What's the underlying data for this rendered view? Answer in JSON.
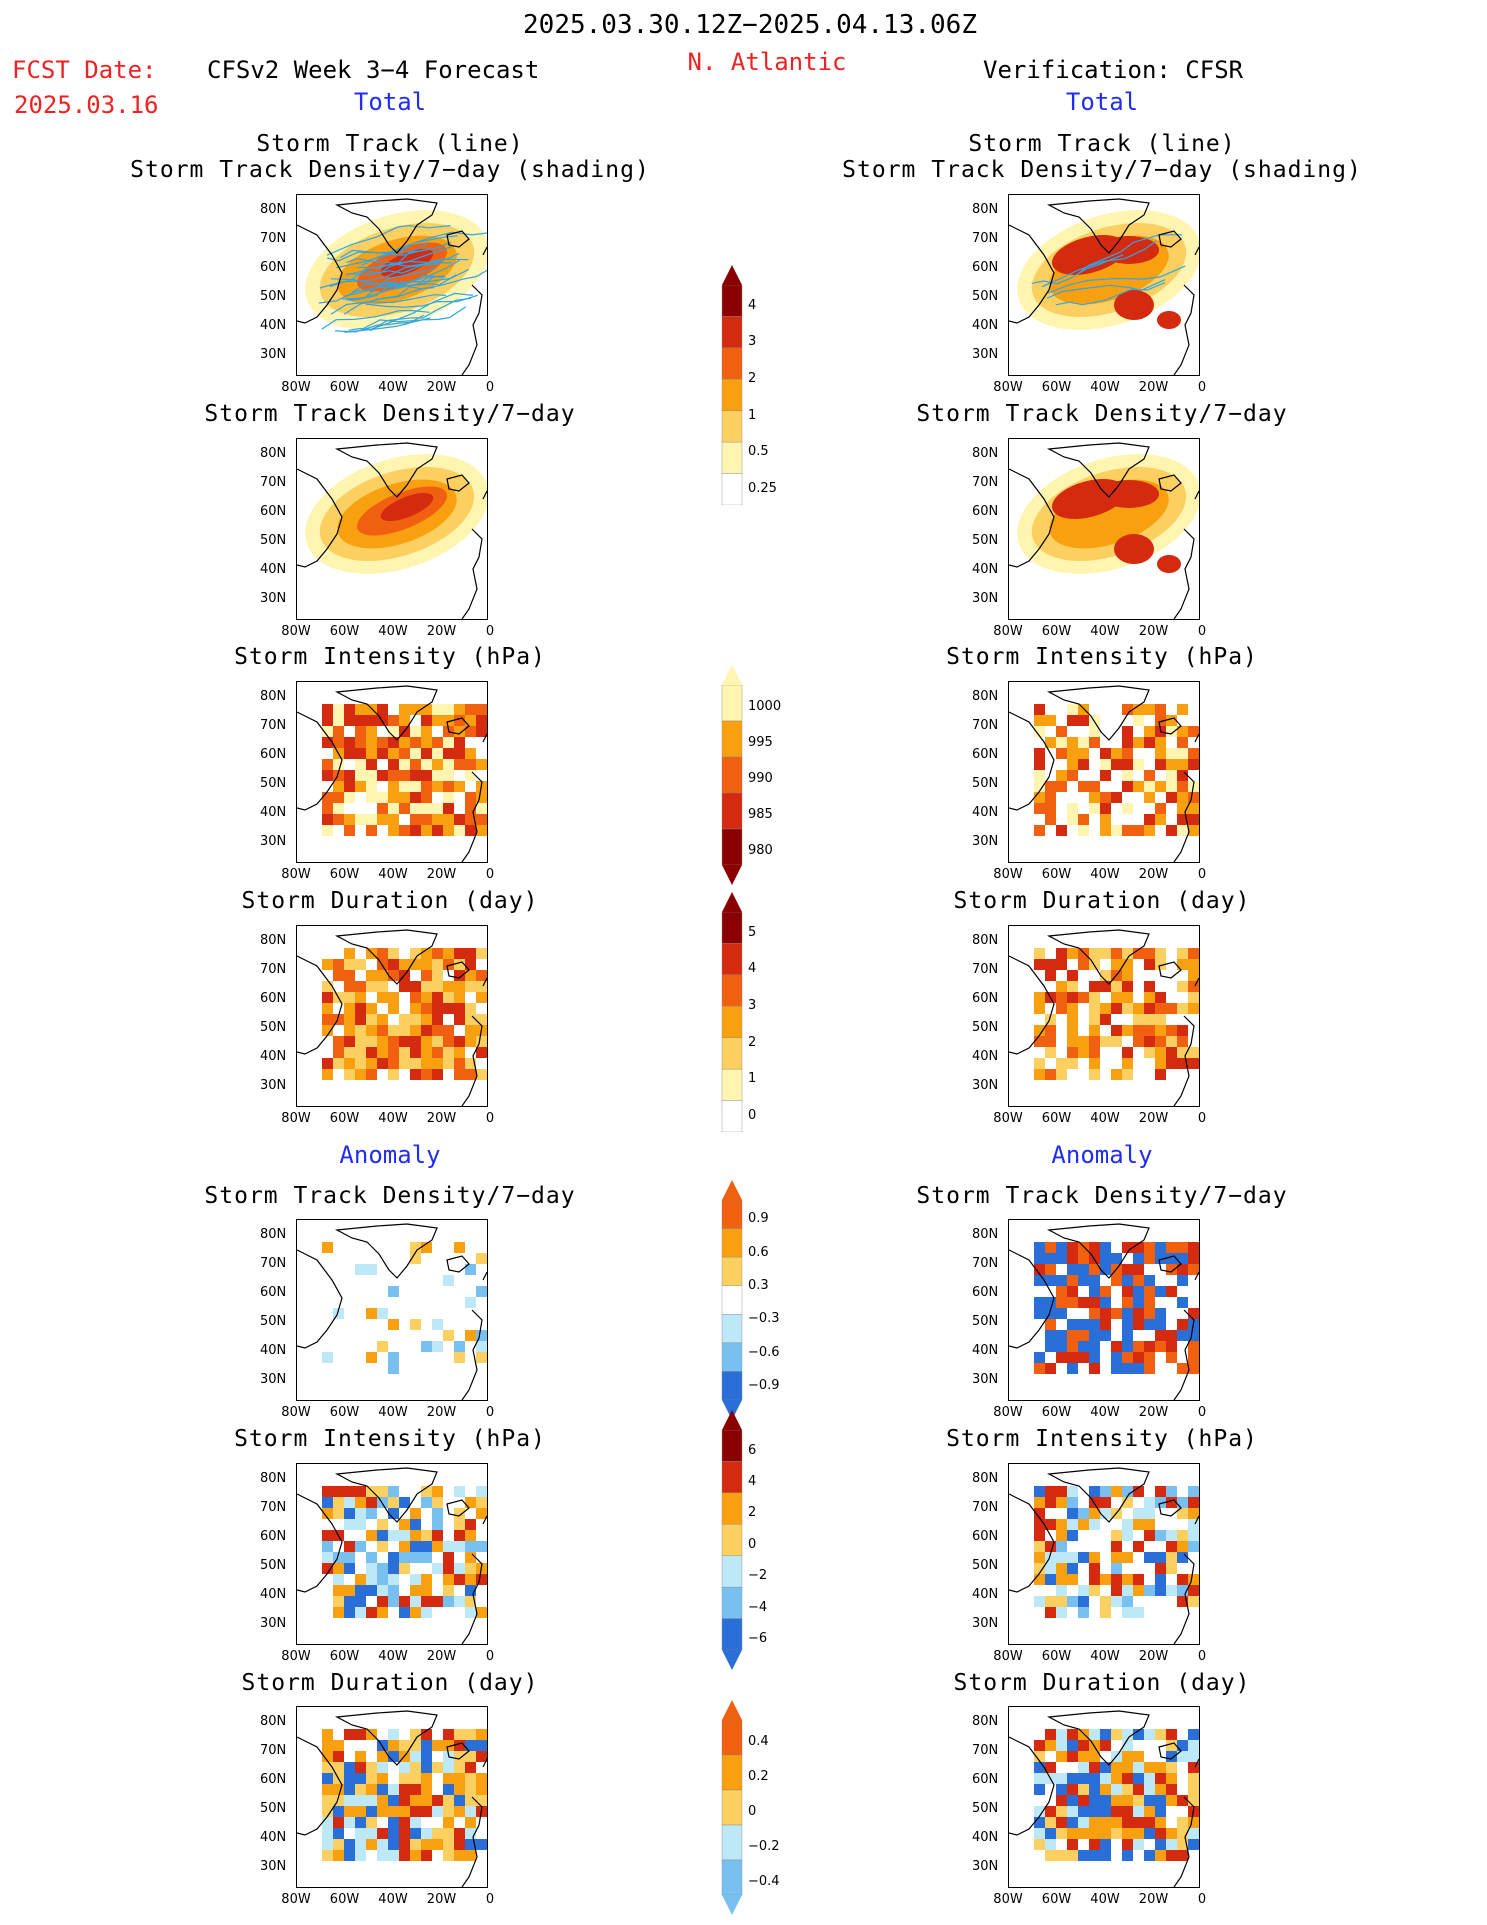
{
  "header": {
    "date_range": "2025.03.30.12Z−2025.04.13.06Z",
    "fcst_label": "FCST Date:",
    "fcst_date": "2025.03.16",
    "model_title": "CFSv2 Week 3−4 Forecast",
    "region": "N. Atlantic",
    "verification": "Verification: CFSR"
  },
  "sections": {
    "total_left": "Total",
    "total_right": "Total",
    "anomaly_left": "Anomaly",
    "anomaly_right": "Anomaly"
  },
  "titles": {
    "track_line": "Storm Track (line)",
    "track_shading": "Storm Track Density/7−day (shading)",
    "density": "Storm Track Density/7−day",
    "intensity": "Storm Intensity (hPa)",
    "duration": "Storm Duration (day)"
  },
  "axes": {
    "lat": [
      "80N",
      "70N",
      "60N",
      "50N",
      "40N",
      "30N"
    ],
    "lon": [
      "80W",
      "60W",
      "40W",
      "20W",
      "0"
    ]
  },
  "colorbars": {
    "density_total": [
      "4",
      "3",
      "2",
      "1",
      "0.5",
      "0.25"
    ],
    "intensity_total": [
      "1000",
      "995",
      "990",
      "985",
      "980"
    ],
    "duration_total": [
      "5",
      "4",
      "3",
      "2",
      "1",
      "0"
    ],
    "density_anom": [
      "0.9",
      "0.6",
      "0.3",
      "−0.3",
      "−0.6",
      "−0.9"
    ],
    "intensity_anom": [
      "6",
      "4",
      "2",
      "0",
      "−2",
      "−4",
      "−6"
    ],
    "duration_anom": [
      "0.4",
      "0.2",
      "0",
      "−0.2",
      "−0.4"
    ]
  },
  "colors": {
    "title_red": "#ee2222",
    "section_blue": "#1f2ef0",
    "track_line": "#2ea6e8",
    "dark_red": "#8b0000",
    "red": "#d42a0f",
    "orange_red": "#f06010",
    "orange": "#f8a010",
    "light_orange": "#fbd060",
    "pale_yellow": "#fff5b0",
    "light_blue": "#bde8f8",
    "mid_blue": "#78c0f0",
    "blue": "#2a6ed8"
  }
}
